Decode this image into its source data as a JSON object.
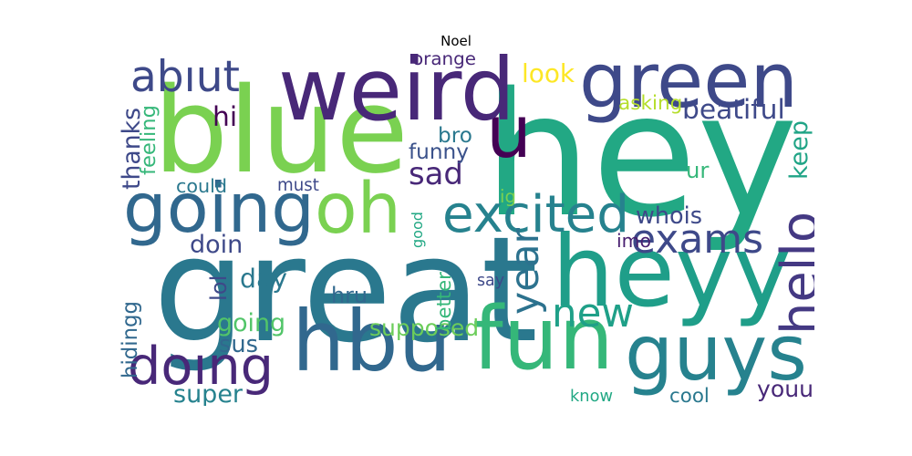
{
  "title": "Noel",
  "words": [
    {
      "text": "hey",
      "color": "#22a884"
    },
    {
      "text": "great",
      "color": "#2a788e"
    },
    {
      "text": "blue",
      "color": "#7ad151"
    },
    {
      "text": "u",
      "color": "#440154"
    },
    {
      "text": "weird",
      "color": "#482878"
    },
    {
      "text": "green",
      "color": "#3e4989"
    },
    {
      "text": "heyy",
      "color": "#1f9e89"
    },
    {
      "text": "hbu",
      "color": "#31688e"
    },
    {
      "text": "fun",
      "color": "#35b779"
    },
    {
      "text": "guys",
      "color": "#26828e"
    },
    {
      "text": "going",
      "color": "#31688e"
    },
    {
      "text": "oh",
      "color": "#7ad151"
    },
    {
      "text": "abıut",
      "color": "#3e4989"
    },
    {
      "text": "sad",
      "color": "#482878"
    },
    {
      "text": "excited",
      "color": "#26828e"
    },
    {
      "text": "exams",
      "color": "#3e4989"
    },
    {
      "text": "hello",
      "color": "#443983"
    },
    {
      "text": "year",
      "color": "#2c728e"
    },
    {
      "text": "new",
      "color": "#1fa088"
    },
    {
      "text": "doıng",
      "color": "#482878"
    },
    {
      "text": "supposed",
      "color": "#6ccd5a"
    },
    {
      "text": "going",
      "color": "#52c569"
    },
    {
      "text": "sus",
      "color": "#31688e"
    },
    {
      "text": "funny",
      "color": "#3b528b"
    },
    {
      "text": "bro",
      "color": "#2a788e"
    },
    {
      "text": "look",
      "color": "#fde725"
    },
    {
      "text": "orange",
      "color": "#482878"
    },
    {
      "text": "beatiful",
      "color": "#3e4989"
    },
    {
      "text": "asking",
      "color": "#b5de2b"
    },
    {
      "text": "keep",
      "color": "#20a486"
    },
    {
      "text": "ur",
      "color": "#35b779"
    },
    {
      "text": "whois",
      "color": "#3e4989"
    },
    {
      "text": "imo",
      "color": "#481f70"
    },
    {
      "text": "hi",
      "color": "#440154"
    },
    {
      "text": "thanks",
      "color": "#3e4989"
    },
    {
      "text": "feeling",
      "color": "#35b779"
    },
    {
      "text": "could",
      "color": "#2a788e"
    },
    {
      "text": "must",
      "color": "#3e4989"
    },
    {
      "text": "doin",
      "color": "#3e4989"
    },
    {
      "text": "day",
      "color": "#2a788e"
    },
    {
      "text": "lol",
      "color": "#3e4989"
    },
    {
      "text": "hru",
      "color": "#31688e"
    },
    {
      "text": "better",
      "color": "#35b779"
    },
    {
      "text": "say",
      "color": "#3e4989"
    },
    {
      "text": "good",
      "color": "#22a884"
    },
    {
      "text": "ig",
      "color": "#7ad151"
    },
    {
      "text": "hidingg",
      "color": "#31688e"
    },
    {
      "text": "super",
      "color": "#26828e"
    },
    {
      "text": "know",
      "color": "#22a884"
    },
    {
      "text": "cool",
      "color": "#2a788e"
    },
    {
      "text": "youu",
      "color": "#482878"
    }
  ]
}
